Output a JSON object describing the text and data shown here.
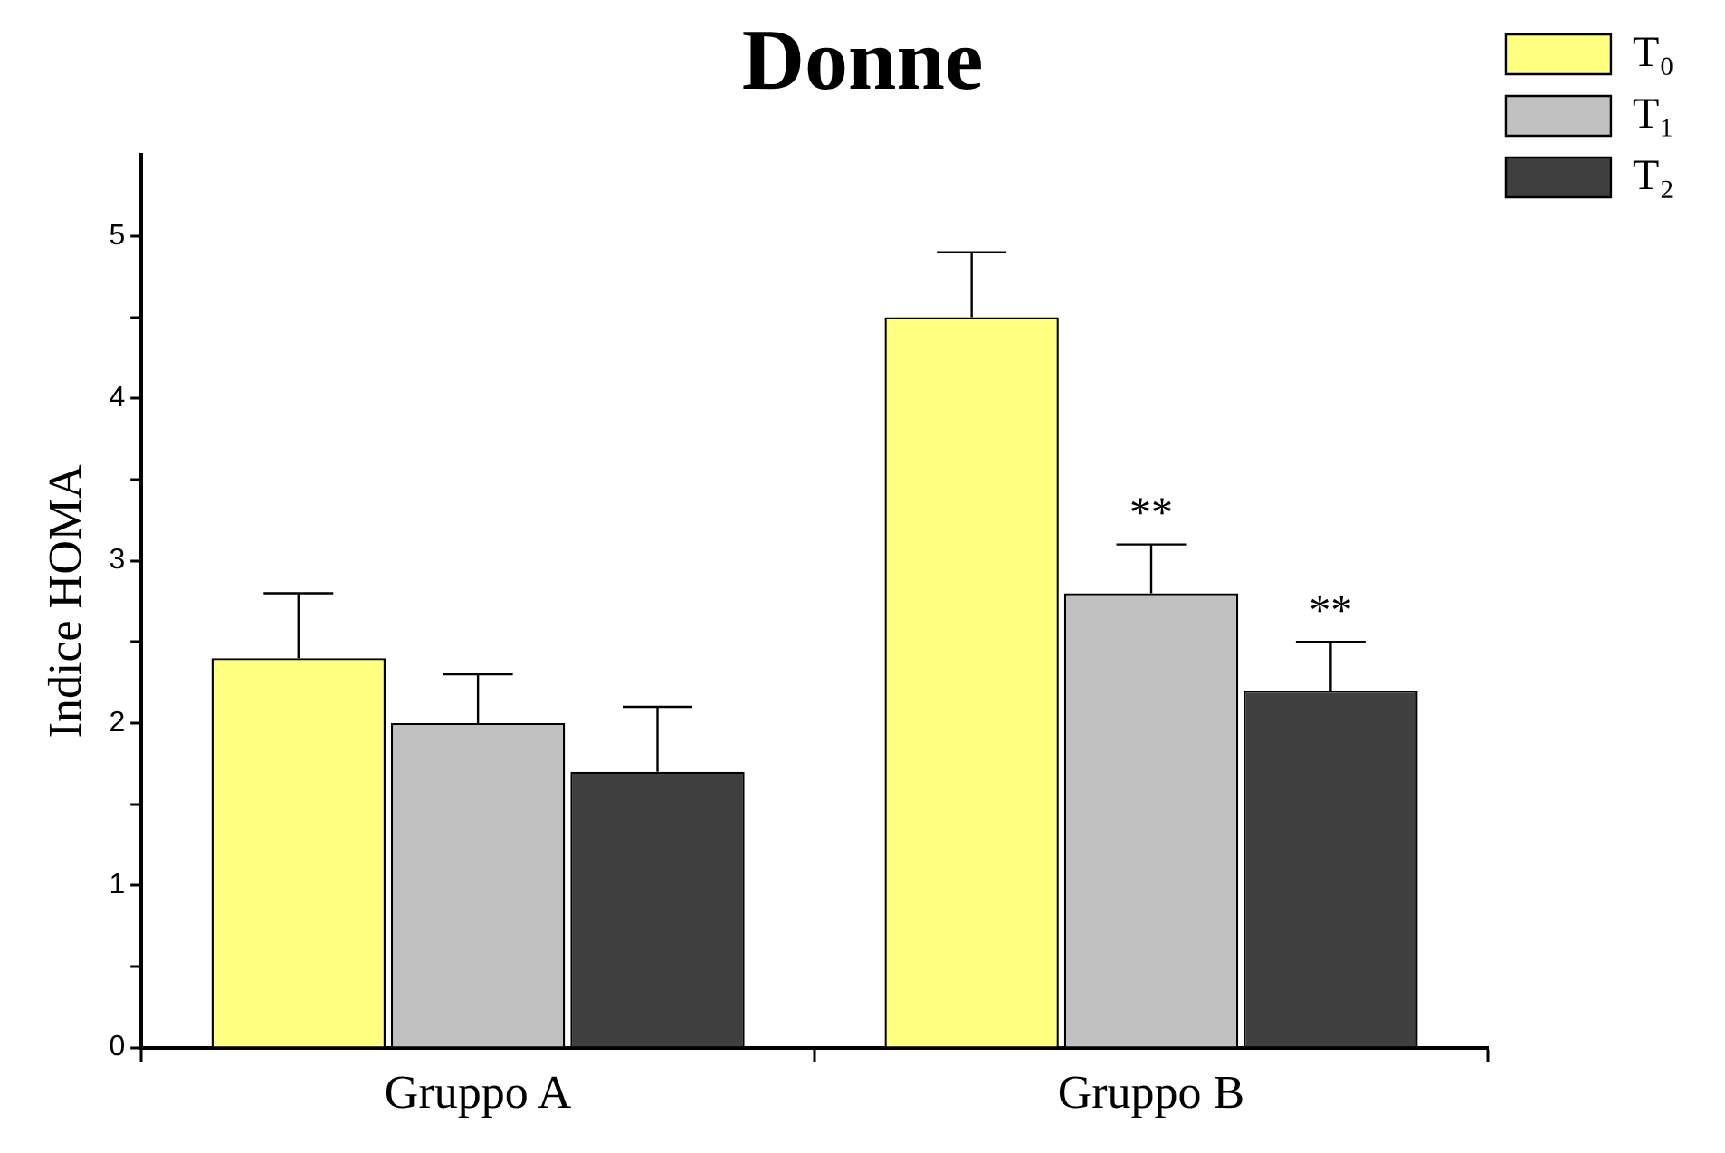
{
  "chart_data": {
    "type": "bar",
    "title": "Donne",
    "ylabel": "Indice HOMA",
    "categories": [
      "Gruppo A",
      "Gruppo B"
    ],
    "series": [
      {
        "name": "T₀",
        "color": "#ffff80",
        "values": [
          2.4,
          4.5
        ],
        "errors": [
          [
            2.4,
            2.8
          ],
          [
            4.5,
            4.9
          ]
        ]
      },
      {
        "name": "T₁",
        "color": "#c0c0c0",
        "values": [
          2.0,
          2.8
        ],
        "errors": [
          [
            2.0,
            2.3
          ],
          [
            2.8,
            3.1
          ]
        ],
        "value_labels": [
          null,
          "**"
        ]
      },
      {
        "name": "T₂",
        "color": "#404040",
        "values": [
          1.7,
          2.2
        ],
        "errors": [
          [
            1.7,
            2.1
          ],
          [
            2.2,
            2.5
          ]
        ],
        "value_labels": [
          null,
          "**"
        ]
      }
    ],
    "ylim": [
      0,
      5.5
    ],
    "yticks": [
      0,
      {
        "value": 0.5,
        "label": null
      },
      1,
      {
        "value": 1.5,
        "label": null
      },
      2,
      {
        "value": 2.5,
        "label": null
      },
      3,
      {
        "value": 3.5,
        "label": null
      },
      4,
      {
        "value": 4.5,
        "label": null
      },
      5
    ],
    "legend": "top right"
  }
}
